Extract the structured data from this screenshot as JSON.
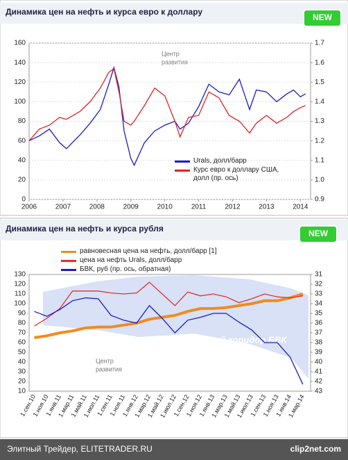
{
  "chart_data": [
    {
      "type": "line",
      "title": "Динамика цен на нефть и курса евро к доллару",
      "badge": "NEW",
      "watermark": [
        "Центр",
        "развития"
      ],
      "xlim": [
        2006,
        2014.3
      ],
      "xticks": [
        2006,
        2007,
        2008,
        2009,
        2010,
        2011,
        2012,
        2013,
        2014
      ],
      "ylim": [
        0,
        160
      ],
      "yticks": [
        0,
        20,
        40,
        60,
        80,
        100,
        120,
        140,
        160
      ],
      "y2lim": [
        0.9,
        1.7
      ],
      "y2ticks": [
        0.9,
        {
          "value": 1,
          "label": "1.0"
        },
        1.1,
        1.2,
        1.3,
        1.4,
        1.5,
        1.6,
        1.7
      ],
      "grid": true,
      "x": [
        2006,
        2006.3,
        2006.6,
        2006.9,
        2007.1,
        2007.5,
        2007.8,
        2008.1,
        2008.35,
        2008.5,
        2008.65,
        2008.8,
        2009,
        2009.1,
        2009.4,
        2009.7,
        2010,
        2010.3,
        2010.45,
        2010.7,
        2011,
        2011.3,
        2011.6,
        2011.9,
        2012.2,
        2012.5,
        2012.7,
        2013,
        2013.3,
        2013.6,
        2013.8,
        2014,
        2014.15
      ],
      "series": [
        {
          "name": "Urals, долл/барр",
          "color": "#1a1acc",
          "values": [
            60,
            65,
            72,
            58,
            52,
            66,
            78,
            92,
            118,
            135,
            115,
            70,
            42,
            35,
            58,
            70,
            76,
            80,
            72,
            78,
            95,
            118,
            110,
            107,
            123,
            92,
            112,
            110,
            100,
            108,
            112,
            105,
            108
          ]
        },
        {
          "name": "Курс евро к доллару США, долл  (пр. ось)",
          "color": "#dd2222",
          "axis": "y2",
          "values": [
            1.2,
            1.26,
            1.28,
            1.32,
            1.31,
            1.35,
            1.4,
            1.47,
            1.55,
            1.57,
            1.45,
            1.3,
            1.28,
            1.3,
            1.38,
            1.47,
            1.43,
            1.3,
            1.22,
            1.32,
            1.33,
            1.45,
            1.42,
            1.33,
            1.3,
            1.24,
            1.29,
            1.33,
            1.29,
            1.32,
            1.35,
            1.37,
            1.38
          ]
        }
      ]
    },
    {
      "type": "line",
      "title": "Динамика цен на нефть и курса рубля",
      "badge": "NEW",
      "watermark": [
        "Центр",
        "развития"
      ],
      "annotation": "Плавающий коридор БВК",
      "categories": [
        "1.сен.10",
        "1.ноя.10",
        "1.янв.11",
        "1.мар.11",
        "1.май.11",
        "1.июл.11",
        "1.сен.11",
        "1.ноя.11",
        "1.янв.12",
        "1.мар.12",
        "1.май.12",
        "1.июл.12",
        "1.сен.12",
        "1.ноя.12",
        "1.янв.13",
        "1.мар.13",
        "1.май.13",
        "1.июл.13",
        "1.сен.13",
        "1.ноя.13",
        "1.янв.14",
        "1.мар.14"
      ],
      "ylim": [
        10,
        130
      ],
      "yticks": [
        10,
        20,
        30,
        40,
        50,
        60,
        70,
        80,
        90,
        100,
        110,
        120,
        130
      ],
      "y2lim": [
        31,
        43
      ],
      "y2reverse": true,
      "y2ticks": [
        31,
        32,
        33,
        34,
        35,
        36,
        37,
        38,
        39,
        40,
        41,
        42,
        43
      ],
      "series": [
        {
          "name": "равновесная цена на нефть, долл/барр   [1]",
          "color": "#f08c1e",
          "values": [
            65,
            67,
            70,
            72,
            75,
            76,
            76,
            78,
            80,
            84,
            86,
            88,
            92,
            95,
            95,
            96,
            98,
            100,
            103,
            103,
            106,
            110
          ]
        },
        {
          "name": "цена на нефть Urals, долл/барр",
          "color": "#e03030",
          "values": [
            77,
            85,
            95,
            113,
            113,
            113,
            111,
            110,
            111,
            122,
            110,
            98,
            112,
            108,
            110,
            107,
            101,
            105,
            110,
            107,
            106,
            108
          ]
        },
        {
          "name": "БВК, руб  (пр. ось, обратная)",
          "color": "#1a1acc",
          "axis": "y2",
          "values": [
            34.8,
            35.3,
            34.6,
            33.7,
            33.4,
            33.5,
            35.2,
            35.7,
            36,
            34.2,
            35.5,
            37,
            35.7,
            35.4,
            35,
            35,
            35.9,
            36.7,
            38,
            38,
            39.5,
            42.3
          ]
        }
      ]
    }
  ],
  "footer": {
    "left": "Элитный Трейдер, ELITETRADER.RU",
    "right": "clip2net.com"
  }
}
